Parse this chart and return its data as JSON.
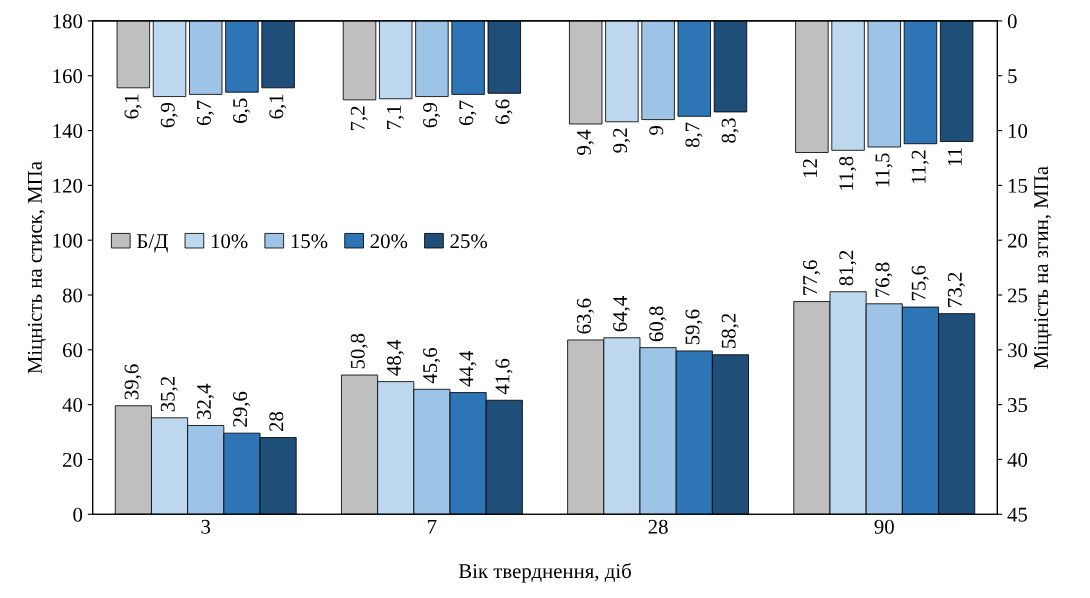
{
  "chart_data": {
    "type": "bar",
    "xlabel": "Вік тверднення, діб",
    "ylabel": "Міцність на стиск, МПа",
    "y2label": "Міцність на згин, МПа",
    "categories": [
      "3",
      "7",
      "28",
      "90"
    ],
    "ylim": [
      0,
      180
    ],
    "yticks": [
      0,
      20,
      40,
      60,
      80,
      100,
      120,
      140,
      160,
      180
    ],
    "y2lim": [
      45,
      0
    ],
    "y2ticks": [
      0,
      5,
      10,
      15,
      20,
      25,
      30,
      35,
      40,
      45
    ],
    "legend": "center left",
    "grid": false,
    "series": [
      {
        "name": "Б/Д",
        "color": "#bfbfbf",
        "values": [
          39.6,
          50.8,
          63.6,
          77.6
        ],
        "value_labels": [
          "39,6",
          "50,8",
          "63,6",
          "77,6"
        ]
      },
      {
        "name": "10%",
        "color": "#bdd7ee",
        "values": [
          35.2,
          48.4,
          64.4,
          81.2
        ],
        "value_labels": [
          "35,2",
          "48,4",
          "64,4",
          "81,2"
        ]
      },
      {
        "name": "15%",
        "color": "#9dc3e6",
        "values": [
          32.4,
          45.6,
          60.8,
          76.8
        ],
        "value_labels": [
          "32,4",
          "45,6",
          "60,8",
          "76,8"
        ]
      },
      {
        "name": "20%",
        "color": "#2e75b6",
        "values": [
          29.6,
          44.4,
          59.6,
          75.6
        ],
        "value_labels": [
          "29,6",
          "44,4",
          "59,6",
          "75,6"
        ]
      },
      {
        "name": "25%",
        "color": "#1f4e79",
        "values": [
          28,
          41.6,
          58.2,
          73.2
        ],
        "value_labels": [
          "28",
          "41,6",
          "58,2",
          "73,2"
        ]
      },
      {
        "axis": "y2",
        "color": "#bfbfbf",
        "values": [
          6.1,
          7.2,
          9.4,
          12
        ],
        "value_labels": [
          "6,1",
          "7,2",
          "9,4",
          "12"
        ]
      },
      {
        "axis": "y2",
        "color": "#bdd7ee",
        "values": [
          6.9,
          7.1,
          9.2,
          11.8
        ],
        "value_labels": [
          "6,9",
          "7,1",
          "9,2",
          "11,8"
        ]
      },
      {
        "axis": "y2",
        "color": "#9dc3e6",
        "values": [
          6.7,
          6.9,
          9,
          11.5
        ],
        "value_labels": [
          "6,7",
          "6,9",
          "9",
          "11,5"
        ]
      },
      {
        "axis": "y2",
        "color": "#2e75b6",
        "values": [
          6.5,
          6.7,
          8.7,
          11.2
        ],
        "value_labels": [
          "6,5",
          "6,7",
          "8,7",
          "11,2"
        ]
      },
      {
        "axis": "y2",
        "color": "#1f4e79",
        "values": [
          6.1,
          6.6,
          8.3,
          11
        ],
        "value_labels": [
          "6,1",
          "6,6",
          "8,3",
          "11"
        ]
      }
    ]
  }
}
